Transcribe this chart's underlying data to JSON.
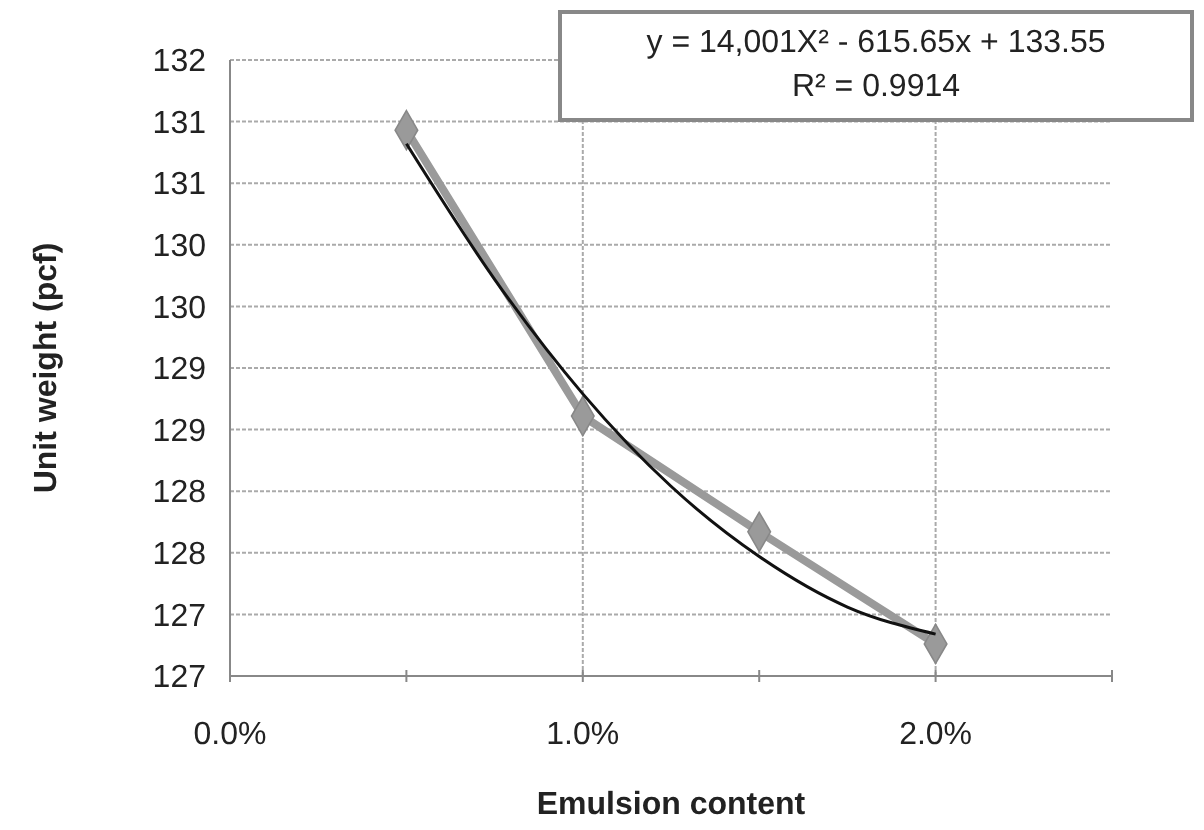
{
  "chart_data": {
    "type": "line",
    "xlabel": "Emulsion content",
    "ylabel": "Unit weight (pcf)",
    "xlim": [
      0,
      2.5
    ],
    "xticks": [
      {
        "value": 0,
        "label": "0.0%"
      },
      {
        "value": 0.5,
        "label": null
      },
      {
        "value": 1,
        "label": "1.0%"
      },
      {
        "value": 1.5,
        "label": null
      },
      {
        "value": 2,
        "label": "2.0%"
      },
      {
        "value": 2.5,
        "label": null
      }
    ],
    "ylim": [
      126.5,
      131.5
    ],
    "yticks": [
      {
        "value": 126.5,
        "label": "127"
      },
      {
        "value": 127,
        "label": "127"
      },
      {
        "value": 127.5,
        "label": "128"
      },
      {
        "value": 128,
        "label": "128"
      },
      {
        "value": 128.5,
        "label": "129"
      },
      {
        "value": 129,
        "label": "129"
      },
      {
        "value": 129.5,
        "label": "130"
      },
      {
        "value": 130,
        "label": "130"
      },
      {
        "value": 130.5,
        "label": "131"
      },
      {
        "value": 131,
        "label": "131"
      },
      {
        "value": 131.5,
        "label": "132"
      }
    ],
    "grid": true,
    "series": [
      {
        "color": "#9a9a9a",
        "marker": "diamond",
        "x": [
          0.5,
          1,
          1.5,
          2
        ],
        "values": [
          130.93,
          128.61,
          127.67,
          126.76
        ]
      },
      {
        "color": "#111111",
        "marker": "none",
        "x": [
          0.5,
          0.75,
          1,
          1.25,
          1.5,
          1.75,
          2
        ],
        "values": [
          130.82,
          129.72,
          128.79,
          128.04,
          127.47,
          127.06,
          126.84
        ]
      }
    ],
    "annotations": [
      "y = 14,001X² - 615.65x + 133.55",
      "R² = 0.9914"
    ]
  }
}
